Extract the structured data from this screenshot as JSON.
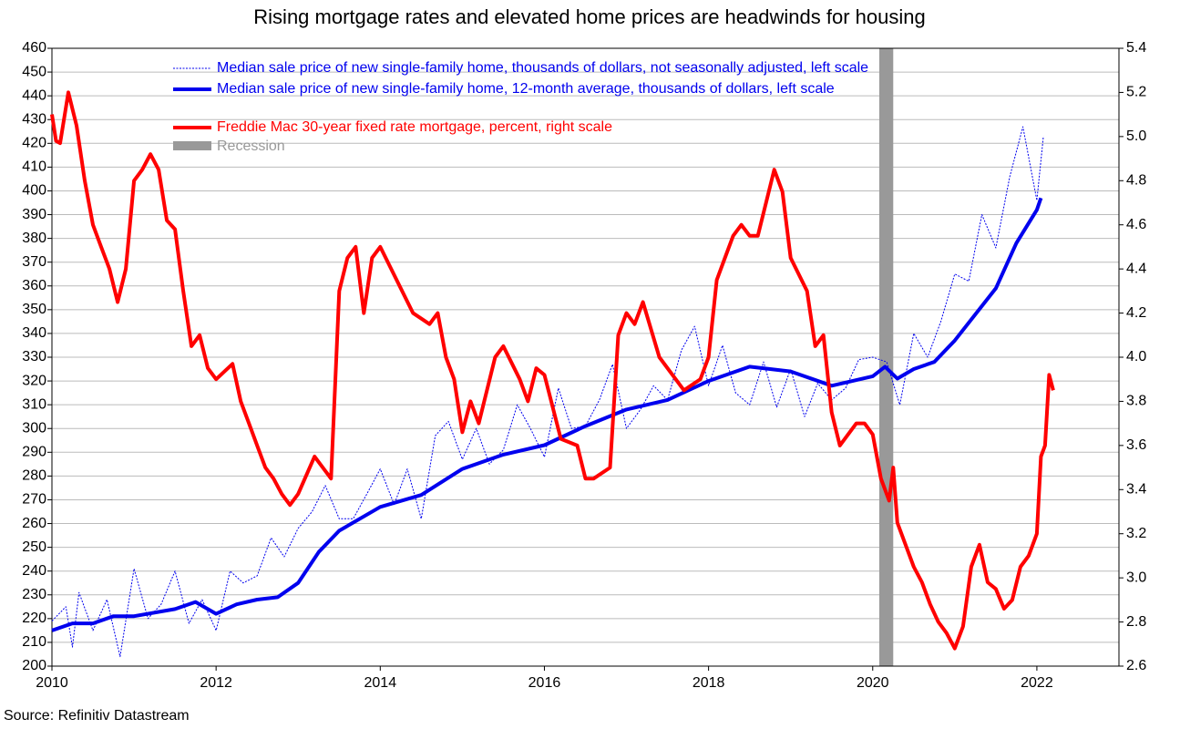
{
  "chart_data": {
    "type": "line",
    "title": "Rising mortgage rates and elevated home prices are headwinds for housing",
    "source": "Source: Refinitiv Datastream",
    "xlim": [
      2010,
      2023
    ],
    "xticks": [
      2010,
      2012,
      2014,
      2016,
      2018,
      2020,
      2022
    ],
    "ylim": [
      200,
      460
    ],
    "yticks": [
      200,
      210,
      220,
      230,
      240,
      250,
      260,
      270,
      280,
      290,
      300,
      310,
      320,
      330,
      340,
      350,
      360,
      370,
      380,
      390,
      400,
      410,
      420,
      430,
      440,
      450,
      460
    ],
    "y2lim": [
      2.6,
      5.4
    ],
    "y2ticks": [
      2.6,
      2.8,
      {
        "value": 3,
        "label": "3.0"
      },
      3.2,
      3.4,
      3.6,
      3.8,
      {
        "value": 4,
        "label": "4.0"
      },
      4.2,
      4.4,
      4.6,
      4.8,
      {
        "value": 5,
        "label": "5.0"
      },
      5.2,
      5.4
    ],
    "grid": true,
    "recession": {
      "name": "Recession",
      "color": "#999999",
      "x": [
        2020.08,
        2020.25
      ]
    },
    "series": [
      {
        "name": "Median sale price of new single-family home, thousands of dollars, not seasonally adjusted, left scale",
        "color": "#0000ee",
        "line_width": 1,
        "line_style": "dotted",
        "x": [
          2010.0,
          2010.17,
          2010.25,
          2010.33,
          2010.5,
          2010.67,
          2010.83,
          2011.0,
          2011.17,
          2011.33,
          2011.5,
          2011.67,
          2011.83,
          2012.0,
          2012.17,
          2012.33,
          2012.5,
          2012.67,
          2012.83,
          2013.0,
          2013.17,
          2013.33,
          2013.5,
          2013.67,
          2013.83,
          2014.0,
          2014.17,
          2014.33,
          2014.5,
          2014.67,
          2014.83,
          2015.0,
          2015.17,
          2015.33,
          2015.5,
          2015.67,
          2015.83,
          2016.0,
          2016.17,
          2016.33,
          2016.5,
          2016.67,
          2016.83,
          2017.0,
          2017.17,
          2017.33,
          2017.5,
          2017.67,
          2017.83,
          2018.0,
          2018.17,
          2018.33,
          2018.5,
          2018.67,
          2018.83,
          2019.0,
          2019.17,
          2019.33,
          2019.5,
          2019.67,
          2019.83,
          2020.0,
          2020.17,
          2020.33,
          2020.5,
          2020.67,
          2020.83,
          2021.0,
          2021.17,
          2021.33,
          2021.5,
          2021.67,
          2021.83,
          2022.0,
          2022.08
        ],
        "values": [
          219,
          225,
          208,
          231,
          215,
          228,
          204,
          241,
          220,
          226,
          240,
          218,
          228,
          215,
          240,
          235,
          238,
          254,
          246,
          258,
          265,
          276,
          262,
          262,
          272,
          283,
          268,
          283,
          262,
          297,
          303,
          287,
          300,
          285,
          291,
          310,
          300,
          288,
          317,
          300,
          301,
          312,
          327,
          300,
          308,
          318,
          312,
          333,
          343,
          318,
          335,
          315,
          310,
          328,
          309,
          325,
          305,
          319,
          312,
          317,
          329,
          330,
          328,
          310,
          340,
          330,
          345,
          365,
          362,
          390,
          376,
          406,
          427,
          396,
          423
        ]
      },
      {
        "name": "Median sale price of new single-family home, 12-month average, thousands of dollars, left scale",
        "color": "#0000ee",
        "line_width": 4,
        "line_style": "solid",
        "x": [
          2010.0,
          2010.25,
          2010.5,
          2010.75,
          2011.0,
          2011.5,
          2011.75,
          2012.0,
          2012.25,
          2012.5,
          2012.75,
          2013.0,
          2013.25,
          2013.5,
          2014.0,
          2014.5,
          2015.0,
          2015.5,
          2016.0,
          2016.5,
          2017.0,
          2017.5,
          2018.0,
          2018.5,
          2019.0,
          2019.5,
          2020.0,
          2020.15,
          2020.3,
          2020.5,
          2020.75,
          2021.0,
          2021.5,
          2021.75,
          2022.0,
          2022.05
        ],
        "values": [
          215,
          218,
          218,
          221,
          221,
          224,
          227,
          222,
          226,
          228,
          229,
          235,
          248,
          257,
          267,
          272,
          283,
          289,
          293,
          301,
          308,
          312,
          320,
          326,
          324,
          318,
          322,
          326,
          321,
          325,
          328,
          337,
          359,
          378,
          392,
          397
        ]
      },
      {
        "name": "Freddie Mac 30-year fixed rate mortgage, percent, right scale",
        "color": "#ff0000",
        "line_width": 4,
        "line_style": "solid",
        "axis": "y2",
        "x": [
          2010.0,
          2010.05,
          2010.1,
          2010.2,
          2010.3,
          2010.4,
          2010.5,
          2010.6,
          2010.7,
          2010.8,
          2010.9,
          2011.0,
          2011.1,
          2011.2,
          2011.3,
          2011.4,
          2011.5,
          2011.6,
          2011.7,
          2011.8,
          2011.9,
          2012.0,
          2012.2,
          2012.3,
          2012.4,
          2012.5,
          2012.6,
          2012.7,
          2012.8,
          2012.9,
          2013.0,
          2013.2,
          2013.4,
          2013.5,
          2013.6,
          2013.7,
          2013.8,
          2013.9,
          2014.0,
          2014.2,
          2014.4,
          2014.6,
          2014.7,
          2014.8,
          2014.9,
          2015.0,
          2015.1,
          2015.2,
          2015.4,
          2015.5,
          2015.7,
          2015.8,
          2015.9,
          2016.0,
          2016.2,
          2016.4,
          2016.5,
          2016.6,
          2016.8,
          2016.9,
          2017.0,
          2017.1,
          2017.2,
          2017.4,
          2017.6,
          2017.7,
          2017.9,
          2018.0,
          2018.1,
          2018.2,
          2018.3,
          2018.4,
          2018.5,
          2018.6,
          2018.7,
          2018.8,
          2018.9,
          2019.0,
          2019.2,
          2019.3,
          2019.4,
          2019.5,
          2019.6,
          2019.7,
          2019.8,
          2019.9,
          2020.0,
          2020.1,
          2020.2,
          2020.25,
          2020.3,
          2020.4,
          2020.5,
          2020.6,
          2020.7,
          2020.8,
          2020.9,
          2021.0,
          2021.1,
          2021.2,
          2021.3,
          2021.4,
          2021.5,
          2021.6,
          2021.7,
          2021.8,
          2021.9,
          2022.0,
          2022.05,
          2022.1,
          2022.15,
          2022.2
        ],
        "values": [
          5.1,
          4.98,
          4.97,
          5.2,
          5.05,
          4.8,
          4.6,
          4.5,
          4.4,
          4.25,
          4.4,
          4.8,
          4.85,
          4.92,
          4.85,
          4.62,
          4.58,
          4.3,
          4.05,
          4.1,
          3.95,
          3.9,
          3.97,
          3.8,
          3.7,
          3.6,
          3.5,
          3.45,
          3.38,
          3.33,
          3.38,
          3.55,
          3.45,
          4.3,
          4.45,
          4.5,
          4.2,
          4.45,
          4.5,
          4.35,
          4.2,
          4.15,
          4.2,
          4.0,
          3.9,
          3.66,
          3.8,
          3.7,
          4.0,
          4.05,
          3.9,
          3.8,
          3.95,
          3.92,
          3.63,
          3.6,
          3.45,
          3.45,
          3.5,
          4.1,
          4.2,
          4.15,
          4.25,
          4.0,
          3.9,
          3.85,
          3.9,
          4.0,
          4.35,
          4.45,
          4.55,
          4.6,
          4.55,
          4.55,
          4.7,
          4.85,
          4.75,
          4.45,
          4.3,
          4.05,
          4.1,
          3.75,
          3.6,
          3.65,
          3.7,
          3.7,
          3.65,
          3.45,
          3.35,
          3.5,
          3.25,
          3.15,
          3.05,
          2.98,
          2.88,
          2.8,
          2.75,
          2.68,
          2.78,
          3.05,
          3.15,
          2.98,
          2.95,
          2.86,
          2.9,
          3.05,
          3.1,
          3.2,
          3.55,
          3.6,
          3.92,
          3.85
        ]
      }
    ]
  }
}
